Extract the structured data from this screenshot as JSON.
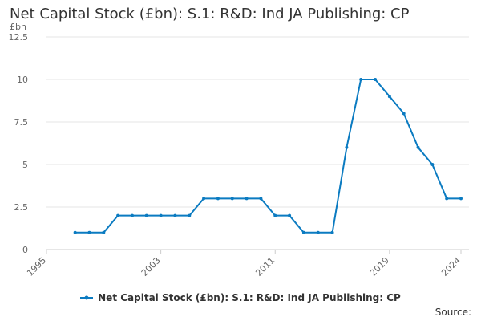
{
  "chart_data": {
    "type": "line",
    "title": "Net Capital Stock (£bn): S.1: R&D: Ind JA Publishing: CP",
    "ylabel": "£bn",
    "ylim": [
      0,
      12.5
    ],
    "yticks": [
      "0",
      "2.5",
      "5",
      "7.5",
      "10",
      "12.5"
    ],
    "ytick_values": [
      0,
      2.5,
      5,
      7.5,
      10,
      12.5
    ],
    "xlim": [
      1995,
      2024
    ],
    "xticks": [
      "1995",
      "2003",
      "2011",
      "2019",
      "2024"
    ],
    "xtick_values": [
      1995,
      2003,
      2011,
      2019,
      2024
    ],
    "grid": true,
    "legend_position": "bottom",
    "series": [
      {
        "name": "Net Capital Stock (£bn): S.1: R&D: Ind JA Publishing: CP",
        "color": "#0b7bc1",
        "x": [
          1997,
          1998,
          1999,
          2000,
          2001,
          2002,
          2003,
          2004,
          2005,
          2006,
          2007,
          2008,
          2009,
          2010,
          2011,
          2012,
          2013,
          2014,
          2015,
          2016,
          2017,
          2018,
          2019,
          2020,
          2021,
          2022,
          2023,
          2024
        ],
        "values": [
          1,
          1,
          1,
          2,
          2,
          2,
          2,
          2,
          2,
          3,
          3,
          3,
          3,
          3,
          2,
          2,
          1,
          1,
          1,
          6,
          10,
          10,
          9,
          8,
          6,
          5,
          3,
          3
        ]
      }
    ]
  },
  "source_label": "Source:"
}
